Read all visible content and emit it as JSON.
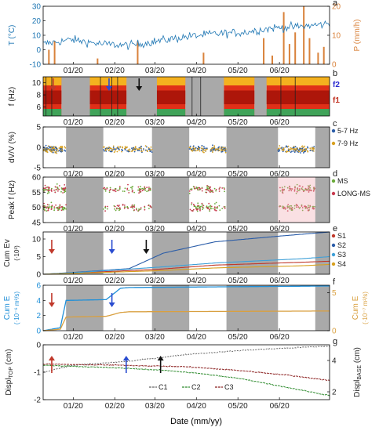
{
  "figure": {
    "xlabel": "Date (mm/yy)",
    "x_ticks": [
      "01/20",
      "02/20",
      "03/20",
      "04/20",
      "05/20",
      "06/20"
    ]
  },
  "colors": {
    "temperature": "#1f77b4",
    "precipitation": "#d9823b",
    "gap": "#a9a9a9",
    "pink": "#f2a6b0",
    "dvv_5_7": "#2a5ca8",
    "dvv_7_9": "#d8a020",
    "ms": "#6aaa3a",
    "long_ms": "#c83c50",
    "s1": "#c0392b",
    "s2": "#2a5ca8",
    "s3": "#3fa0d8",
    "s4": "#d8a020",
    "cumE_left": "#1f8fd8",
    "cumE_right": "#d9a040",
    "c1": "#666666",
    "c2": "#2e8b2e",
    "c3": "#8b2020",
    "arrow_red": "#c0392b",
    "arrow_blue": "#2a4cd0",
    "arrow_black": "#111111"
  },
  "chart_data": [
    {
      "panel": "a",
      "type": "line",
      "ylabel": "T (°C)",
      "ylabel_right": "P (mm/h)",
      "ylim": [
        -10,
        30
      ],
      "yticks": [
        -10,
        0,
        10,
        20,
        30
      ],
      "ylim_right": [
        0,
        20
      ],
      "yticks_right": [
        0,
        10,
        20
      ],
      "series": [
        {
          "name": "T",
          "type": "line",
          "trend": [
            [
              0.0,
              4
            ],
            [
              0.1,
              7
            ],
            [
              0.2,
              4
            ],
            [
              0.3,
              3
            ],
            [
              0.4,
              6
            ],
            [
              0.5,
              9
            ],
            [
              0.6,
              11
            ],
            [
              0.7,
              12
            ],
            [
              0.8,
              15
            ],
            [
              0.9,
              16
            ],
            [
              1.0,
              18
            ]
          ]
        },
        {
          "name": "P",
          "type": "bar",
          "values": [
            [
              0.02,
              5
            ],
            [
              0.04,
              8
            ],
            [
              0.19,
              2
            ],
            [
              0.33,
              8
            ],
            [
              0.56,
              4
            ],
            [
              0.77,
              9
            ],
            [
              0.8,
              3
            ],
            [
              0.84,
              18
            ],
            [
              0.86,
              7
            ],
            [
              0.88,
              11
            ],
            [
              0.91,
              20
            ],
            [
              0.93,
              9
            ],
            [
              0.96,
              4
            ],
            [
              0.98,
              6
            ]
          ]
        }
      ]
    },
    {
      "panel": "b",
      "type": "heatmap",
      "ylabel": "f (Hz)",
      "ylim": [
        4.5,
        11
      ],
      "yticks": [
        6,
        8,
        10
      ],
      "annotations": [
        "f2",
        "f1"
      ],
      "data_blocks": [
        [
          0.0,
          0.09
        ],
        [
          0.23,
          0.41
        ],
        [
          0.56,
          0.7
        ],
        [
          0.89,
          1.04
        ],
        [
          1.1,
          1.41
        ]
      ],
      "gaps": [
        [
          0.09,
          0.23
        ],
        [
          0.41,
          0.56
        ],
        [
          0.7,
          0.89
        ],
        [
          1.04,
          1.1
        ]
      ]
    },
    {
      "panel": "c",
      "type": "scatter",
      "ylabel": "dV/V (%)",
      "ylim": [
        -5,
        5
      ],
      "yticks": [
        -5,
        0,
        5
      ],
      "legend": [
        "5-7 Hz",
        "7-9 Hz"
      ],
      "level": -0.5
    },
    {
      "panel": "d",
      "type": "scatter",
      "ylabel": "Peak f (Hz)",
      "ylim": [
        45,
        60
      ],
      "yticks": [
        45,
        50,
        55,
        60
      ],
      "legend": [
        "MS",
        "LONG-MS"
      ],
      "bands": [
        56,
        50
      ]
    },
    {
      "panel": "e",
      "type": "line",
      "ylabel": "Cum Ev",
      "ylabel2": "(·10³)",
      "ylim": [
        0,
        12
      ],
      "yticks": [
        0,
        5,
        10
      ],
      "legend": [
        "S1",
        "S2",
        "S3",
        "S4"
      ],
      "series": [
        {
          "name": "S1",
          "points": [
            [
              0.0,
              0
            ],
            [
              0.12,
              0.4
            ],
            [
              0.4,
              1.4
            ],
            [
              0.6,
              2.6
            ],
            [
              0.9,
              3.4
            ],
            [
              1.0,
              3.7
            ]
          ]
        },
        {
          "name": "S2",
          "points": [
            [
              0.0,
              0
            ],
            [
              0.12,
              0.6
            ],
            [
              0.3,
              1.6
            ],
            [
              0.42,
              6.0
            ],
            [
              0.6,
              9.2
            ],
            [
              0.85,
              11.0
            ],
            [
              1.0,
              12
            ]
          ]
        },
        {
          "name": "S3",
          "points": [
            [
              0.0,
              0
            ],
            [
              0.12,
              0.5
            ],
            [
              0.4,
              2.0
            ],
            [
              0.6,
              3.2
            ],
            [
              0.9,
              4.4
            ],
            [
              1.0,
              5.0
            ]
          ]
        },
        {
          "name": "S4",
          "points": [
            [
              0.0,
              0
            ],
            [
              0.12,
              0.3
            ],
            [
              0.4,
              1.0
            ],
            [
              0.6,
              1.8
            ],
            [
              0.9,
              2.4
            ],
            [
              1.0,
              2.8
            ]
          ]
        }
      ]
    },
    {
      "panel": "f",
      "type": "line",
      "ylabel": "Cum E",
      "ylabel2": "(·10⁻⁶ m²/s)",
      "ylabel_right": "Cum E",
      "ylabel_right2": "(·10⁻⁷ m²/s)",
      "ylim": [
        0,
        6
      ],
      "yticks": [
        0,
        2,
        4,
        6
      ],
      "ylim_right": [
        0,
        6
      ],
      "yticks_right": [
        0,
        5
      ],
      "series": [
        {
          "name": "left",
          "points": [
            [
              0.0,
              0
            ],
            [
              0.06,
              0.4
            ],
            [
              0.08,
              4.0
            ],
            [
              0.22,
              4.1
            ],
            [
              0.27,
              5.6
            ],
            [
              0.3,
              5.7
            ],
            [
              1.0,
              5.9
            ]
          ]
        },
        {
          "name": "right",
          "points": [
            [
              0.0,
              0
            ],
            [
              0.06,
              0.2
            ],
            [
              0.08,
              1.8
            ],
            [
              0.22,
              1.9
            ],
            [
              0.27,
              2.4
            ],
            [
              0.3,
              2.5
            ],
            [
              1.0,
              2.6
            ]
          ]
        }
      ]
    },
    {
      "panel": "g",
      "type": "line",
      "ylabel": "Displ",
      "ylabel_sub": "TOP",
      "ylabel_unit": "(cm)",
      "ylabel_right": "Displ",
      "ylabel_right_sub": "BASE",
      "ylabel_right_unit": "(cm)",
      "ylim": [
        -2,
        0
      ],
      "yticks": [
        -2,
        -1,
        0
      ],
      "ylim_right": [
        1.5,
        5
      ],
      "yticks_right": [
        2,
        4
      ],
      "legend": [
        "C1",
        "C2",
        "C3"
      ],
      "series": [
        {
          "name": "C1",
          "points": [
            [
              0.0,
              -1.0
            ],
            [
              0.1,
              -0.75
            ],
            [
              0.3,
              -0.6
            ],
            [
              0.5,
              -0.35
            ],
            [
              0.7,
              -0.2
            ],
            [
              0.85,
              -0.12
            ],
            [
              1.0,
              -0.05
            ]
          ]
        },
        {
          "name": "C2",
          "points": [
            [
              0.0,
              -0.75
            ],
            [
              0.1,
              -0.78
            ],
            [
              0.3,
              -0.86
            ],
            [
              0.45,
              -0.95
            ],
            [
              0.55,
              -1.05
            ],
            [
              0.7,
              -1.25
            ],
            [
              0.85,
              -1.55
            ],
            [
              1.0,
              -1.85
            ]
          ]
        },
        {
          "name": "C3",
          "points": [
            [
              0.0,
              -0.7
            ],
            [
              0.1,
              -0.72
            ],
            [
              0.3,
              -0.75
            ],
            [
              0.5,
              -0.8
            ],
            [
              0.7,
              -0.95
            ],
            [
              0.85,
              -1.1
            ],
            [
              1.0,
              -1.3
            ]
          ]
        }
      ]
    }
  ]
}
